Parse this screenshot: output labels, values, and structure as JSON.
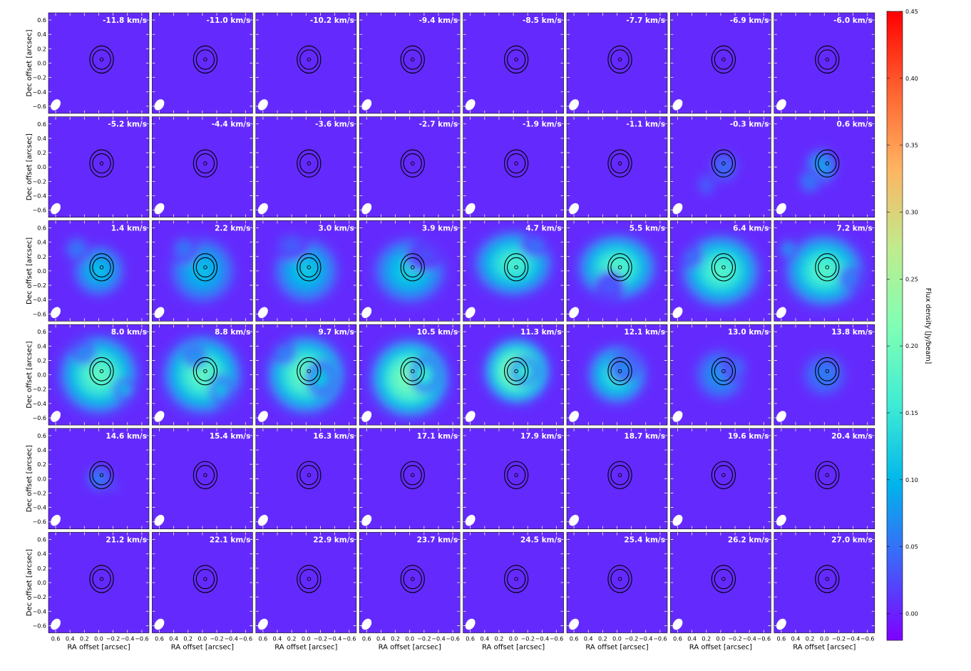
{
  "chart_data": {
    "type": "heatmap",
    "description_grid": {
      "rows": 6,
      "cols": 8
    },
    "xlabel": "RA offset [arcsec]",
    "ylabel": "Dec offset [arcsec]",
    "xlim": [
      0.7,
      -0.7
    ],
    "ylim": [
      -0.7,
      0.7
    ],
    "x_ticks": [
      "0.6",
      "0.4",
      "0.2",
      "0.0",
      "−0.2",
      "−0.4",
      "−0.6"
    ],
    "x_tick_values": [
      0.6,
      0.4,
      0.2,
      0.0,
      -0.2,
      -0.4,
      -0.6
    ],
    "y_ticks": [
      "0.6",
      "0.4",
      "0.2",
      "0.0",
      "−0.2",
      "−0.4",
      "−0.6"
    ],
    "y_tick_values": [
      0.6,
      0.4,
      0.2,
      0.0,
      -0.2,
      -0.4,
      -0.6
    ],
    "colorbar": {
      "label": "Flux density [Jy/beam]",
      "range": [
        -0.02,
        0.45
      ],
      "tick_values": [
        0.0,
        0.05,
        0.1,
        0.15,
        0.2,
        0.25,
        0.3,
        0.35,
        0.4,
        0.45
      ],
      "tick_labels": [
        "0.00",
        "0.05",
        "0.10",
        "0.15",
        "0.20",
        "0.25",
        "0.30",
        "0.35",
        "0.40",
        "0.45"
      ]
    },
    "colormap": [
      "#7f00ff",
      "#4062fa",
      "#00b5eb",
      "#40ecd4",
      "#80ffb4",
      "#c0eb8d",
      "#ffb462",
      "#ff6230",
      "#ff0000"
    ],
    "panel_background_level": 0.005,
    "velocity_labels": [
      "-11.8 km/s",
      "-11.0 km/s",
      "-10.2 km/s",
      "-9.4 km/s",
      "-8.5 km/s",
      "-7.7 km/s",
      "-6.9 km/s",
      "-6.0 km/s",
      "-5.2 km/s",
      "-4.4 km/s",
      "-3.6 km/s",
      "-2.7 km/s",
      "-1.9 km/s",
      "-1.1 km/s",
      "-0.3 km/s",
      "0.6 km/s",
      "1.4 km/s",
      "2.2 km/s",
      "3.0 km/s",
      "3.9 km/s",
      "4.7 km/s",
      "5.5 km/s",
      "6.4 km/s",
      "7.2 km/s",
      "8.0 km/s",
      "8.8 km/s",
      "9.7 km/s",
      "10.5 km/s",
      "11.3 km/s",
      "12.1 km/s",
      "13.0 km/s",
      "13.8 km/s",
      "14.6 km/s",
      "15.4 km/s",
      "16.3 km/s",
      "17.1 km/s",
      "17.9 km/s",
      "18.7 km/s",
      "19.6 km/s",
      "20.4 km/s",
      "21.2 km/s",
      "22.1 km/s",
      "22.9 km/s",
      "23.7 km/s",
      "24.5 km/s",
      "25.4 km/s",
      "26.2 km/s",
      "27.0 km/s"
    ],
    "emission_blobs": [
      [],
      [],
      [],
      [],
      [],
      [],
      [],
      [],
      [],
      [],
      [],
      [],
      [],
      [],
      [
        {
          "x": -0.05,
          "y": 0.0,
          "sx": 0.22,
          "sy": 0.25,
          "v": 0.05
        },
        {
          "x": 0.2,
          "y": -0.25,
          "sx": 0.15,
          "sy": 0.18,
          "v": 0.04
        }
      ],
      [
        {
          "x": 0.05,
          "y": 0.0,
          "sx": 0.25,
          "sy": 0.28,
          "v": 0.09
        },
        {
          "x": 0.2,
          "y": -0.2,
          "sx": 0.18,
          "sy": 0.2,
          "v": 0.06
        }
      ],
      [
        {
          "x": 0.0,
          "y": 0.0,
          "sx": 0.4,
          "sy": 0.4,
          "v": 0.11
        },
        {
          "x": 0.3,
          "y": 0.3,
          "sx": 0.2,
          "sy": 0.2,
          "v": 0.06
        }
      ],
      [
        {
          "x": 0.0,
          "y": 0.0,
          "sx": 0.5,
          "sy": 0.5,
          "v": 0.11
        },
        {
          "x": 0.25,
          "y": 0.3,
          "sx": 0.2,
          "sy": 0.2,
          "v": 0.06
        }
      ],
      [
        {
          "x": 0.0,
          "y": 0.0,
          "sx": 0.5,
          "sy": 0.5,
          "v": 0.12
        },
        {
          "x": 0.2,
          "y": 0.35,
          "sx": 0.25,
          "sy": 0.2,
          "v": 0.04
        }
      ],
      [
        {
          "x": 0.0,
          "y": 0.0,
          "sx": 0.55,
          "sy": 0.5,
          "v": 0.13
        },
        {
          "x": -0.2,
          "y": 0.2,
          "sx": 0.25,
          "sy": 0.2,
          "v": 0.03
        }
      ],
      [
        {
          "x": 0.0,
          "y": 0.1,
          "sx": 0.6,
          "sy": 0.5,
          "v": 0.17
        },
        {
          "x": -0.3,
          "y": 0.35,
          "sx": 0.2,
          "sy": 0.15,
          "v": 0.06
        }
      ],
      [
        {
          "x": 0.0,
          "y": 0.05,
          "sx": 0.6,
          "sy": 0.5,
          "v": 0.18
        },
        {
          "x": 0.1,
          "y": -0.2,
          "sx": 0.2,
          "sy": 0.2,
          "v": 0.04
        }
      ],
      [
        {
          "x": 0.0,
          "y": 0.0,
          "sx": 0.6,
          "sy": 0.55,
          "v": 0.18
        },
        {
          "x": 0.4,
          "y": 0.2,
          "sx": 0.15,
          "sy": 0.15,
          "v": 0.06
        }
      ],
      [
        {
          "x": 0.0,
          "y": 0.0,
          "sx": 0.6,
          "sy": 0.55,
          "v": 0.18
        },
        {
          "x": 0.5,
          "y": 0.3,
          "sx": 0.15,
          "sy": 0.15,
          "v": 0.08
        },
        {
          "x": -0.35,
          "y": -0.1,
          "sx": 0.15,
          "sy": 0.15,
          "v": 0.08
        }
      ],
      [
        {
          "x": 0.0,
          "y": 0.0,
          "sx": 0.6,
          "sy": 0.6,
          "v": 0.19
        },
        {
          "x": 0.2,
          "y": 0.3,
          "sx": 0.15,
          "sy": 0.15,
          "v": 0.09
        },
        {
          "x": -0.35,
          "y": -0.2,
          "sx": 0.15,
          "sy": 0.15,
          "v": 0.12
        }
      ],
      [
        {
          "x": 0.0,
          "y": 0.0,
          "sx": 0.6,
          "sy": 0.6,
          "v": 0.19
        },
        {
          "x": 0.1,
          "y": 0.25,
          "sx": 0.15,
          "sy": 0.15,
          "v": 0.1
        },
        {
          "x": -0.25,
          "y": -0.2,
          "sx": 0.15,
          "sy": 0.2,
          "v": 0.13
        }
      ],
      [
        {
          "x": 0.0,
          "y": 0.0,
          "sx": 0.6,
          "sy": 0.6,
          "v": 0.2
        },
        {
          "x": -0.2,
          "y": -0.05,
          "sx": 0.2,
          "sy": 0.25,
          "v": 0.13
        },
        {
          "x": 0.3,
          "y": 0.3,
          "sx": 0.15,
          "sy": 0.15,
          "v": 0.08
        }
      ],
      [
        {
          "x": 0.0,
          "y": -0.05,
          "sx": 0.6,
          "sy": 0.6,
          "v": 0.22
        },
        {
          "x": -0.2,
          "y": 0.0,
          "sx": 0.2,
          "sy": 0.25,
          "v": 0.18
        }
      ],
      [
        {
          "x": -0.05,
          "y": 0.05,
          "sx": 0.5,
          "sy": 0.5,
          "v": 0.24
        },
        {
          "x": -0.15,
          "y": 0.05,
          "sx": 0.2,
          "sy": 0.2,
          "v": 0.18
        }
      ],
      [
        {
          "x": 0.0,
          "y": 0.0,
          "sx": 0.45,
          "sy": 0.45,
          "v": 0.16
        },
        {
          "x": -0.1,
          "y": 0.1,
          "sx": 0.2,
          "sy": 0.2,
          "v": 0.08
        }
      ],
      [
        {
          "x": 0.0,
          "y": 0.0,
          "sx": 0.4,
          "sy": 0.4,
          "v": 0.08
        },
        {
          "x": -0.2,
          "y": 0.1,
          "sx": 0.2,
          "sy": 0.2,
          "v": 0.05
        }
      ],
      [
        {
          "x": 0.0,
          "y": 0.0,
          "sx": 0.35,
          "sy": 0.35,
          "v": 0.06
        }
      ],
      [
        {
          "x": 0.0,
          "y": 0.0,
          "sx": 0.2,
          "sy": 0.2,
          "v": 0.06
        },
        {
          "x": -0.2,
          "y": -0.1,
          "sx": 0.1,
          "sy": 0.1,
          "v": 0.03
        }
      ],
      [],
      [],
      [],
      [],
      [],
      [],
      [],
      [],
      [],
      [],
      [],
      [],
      [],
      [],
      []
    ]
  }
}
